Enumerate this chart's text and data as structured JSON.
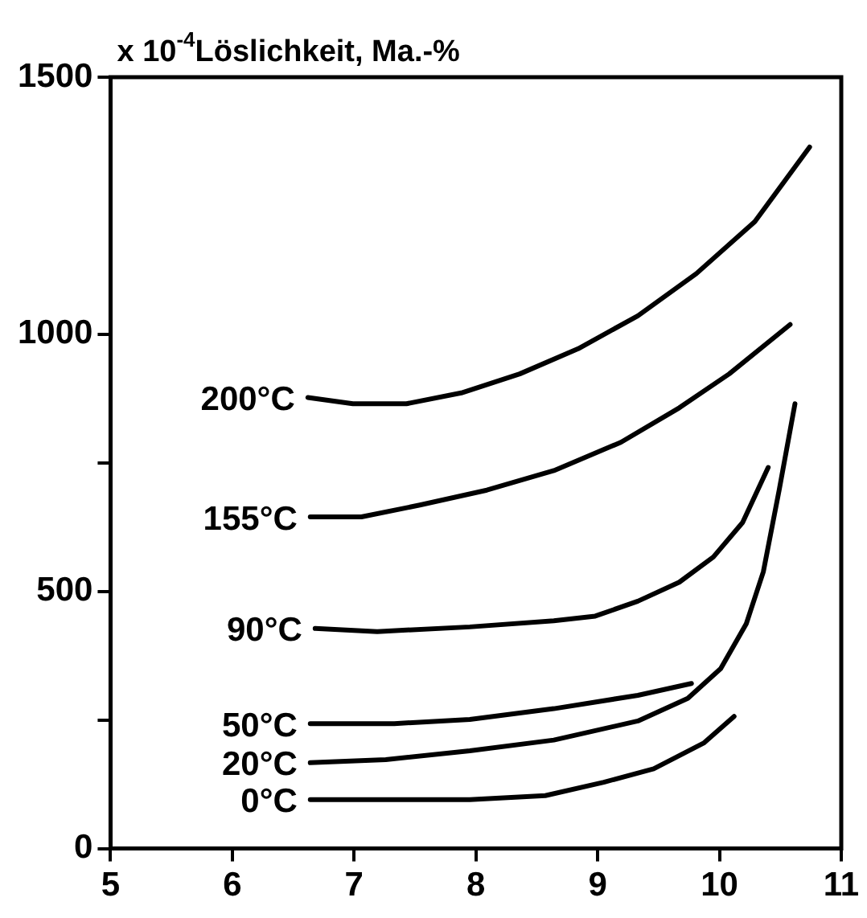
{
  "chart_data": {
    "type": "line",
    "ylabel": "x 10$^{-4}$Löslichkeit, Ma.-%",
    "xlim": [
      5,
      11
    ],
    "xticks": [
      5,
      6,
      7,
      8,
      9,
      10,
      11
    ],
    "ylim": [
      0,
      1500
    ],
    "yticks": [
      0,
      {
        "value": 250,
        "label": null
      },
      500,
      {
        "value": 750,
        "label": null
      },
      1000,
      1500
    ],
    "grid": false,
    "legend": false,
    "marker": "none",
    "line_style": "solid",
    "series": [
      {
        "name": "200°C",
        "color": "#000000",
        "x": [
          6.62,
          6.99,
          7.43,
          7.88,
          8.36,
          8.84,
          9.33,
          9.81,
          10.29,
          10.74
        ],
        "values": [
          877,
          865,
          865,
          886,
          923,
          972,
          1036,
          1118,
          1219,
          1364
        ]
      },
      {
        "name": "155°C",
        "color": "#000000",
        "x": [
          6.64,
          7.06,
          7.54,
          8.09,
          8.64,
          9.19,
          9.67,
          10.08,
          10.58
        ],
        "values": [
          645,
          645,
          668,
          697,
          735,
          790,
          857,
          923,
          1019
        ]
      },
      {
        "name": "90°C",
        "color": "#000000",
        "x": [
          6.68,
          7.19,
          7.95,
          8.64,
          8.98,
          9.33,
          9.67,
          9.95,
          10.19,
          10.4
        ],
        "values": [
          428,
          422,
          431,
          443,
          452,
          481,
          518,
          567,
          634,
          741
        ]
      },
      {
        "name": "50°C",
        "color": "#000000",
        "x": [
          6.64,
          7.33,
          7.95,
          8.64,
          9.33,
          9.77
        ],
        "values": [
          243,
          243,
          251,
          272,
          298,
          321
        ]
      },
      {
        "name": "20°C",
        "color": "#000000",
        "x": [
          6.64,
          7.26,
          7.95,
          8.64,
          9.33,
          9.74,
          10.01,
          10.22,
          10.36,
          10.49,
          10.62
        ],
        "values": [
          167,
          173,
          190,
          211,
          248,
          292,
          350,
          437,
          538,
          697,
          865
        ]
      },
      {
        "name": "0°C",
        "color": "#000000",
        "x": [
          6.64,
          7.95,
          8.57,
          9.05,
          9.46,
          9.87,
          10.12
        ],
        "values": [
          95,
          95,
          103,
          129,
          155,
          205,
          257
        ]
      }
    ]
  }
}
